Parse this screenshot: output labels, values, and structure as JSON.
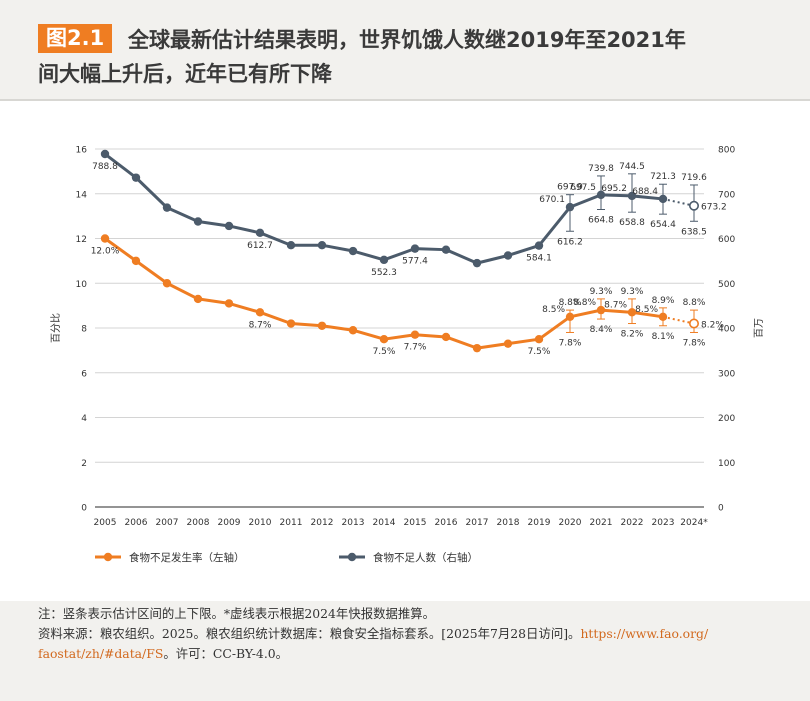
{
  "header": {
    "badge": "图2.1",
    "title_line1": "全球最新估计结果表明，世界饥饿人数继2019年至2021年",
    "title_line2": "间大幅上升后，近年已有所下降"
  },
  "chart_data": {
    "type": "line",
    "categories": [
      "2005",
      "2006",
      "2007",
      "2008",
      "2009",
      "2010",
      "2011",
      "2012",
      "2013",
      "2014",
      "2015",
      "2016",
      "2017",
      "2018",
      "2019",
      "2020",
      "2021",
      "2022",
      "2023",
      "2024*"
    ],
    "left_axis": {
      "label": "百分比",
      "ylim": [
        0,
        16
      ],
      "ticks": [
        0,
        2,
        4,
        6,
        8,
        10,
        12,
        14,
        16
      ]
    },
    "right_axis": {
      "label": "百万",
      "ylim": [
        0,
        800
      ],
      "ticks": [
        0,
        100,
        200,
        300,
        400,
        500,
        600,
        700,
        800
      ]
    },
    "grid": "horizontal",
    "legend_position": "bottom-left",
    "series": [
      {
        "name": "食物不足发生率（左轴）",
        "axis": "left",
        "color": "#ef7d22",
        "values": [
          12.0,
          11.0,
          10.0,
          9.3,
          9.1,
          8.7,
          8.2,
          8.1,
          7.9,
          7.5,
          7.7,
          7.6,
          7.1,
          7.3,
          7.5,
          8.5,
          8.8,
          8.7,
          8.5,
          8.2
        ],
        "upper": [
          null,
          null,
          null,
          null,
          null,
          null,
          null,
          null,
          null,
          null,
          null,
          null,
          null,
          null,
          null,
          8.8,
          9.3,
          9.3,
          8.9,
          8.8
        ],
        "lower": [
          null,
          null,
          null,
          null,
          null,
          null,
          null,
          null,
          null,
          null,
          null,
          null,
          null,
          null,
          null,
          7.8,
          8.4,
          8.2,
          8.1,
          7.8
        ],
        "labels": [
          {
            "i": 0,
            "text": "12.0%",
            "pos": "below"
          },
          {
            "i": 5,
            "text": "8.7%",
            "pos": "below"
          },
          {
            "i": 9,
            "text": "7.5%",
            "pos": "below"
          },
          {
            "i": 10,
            "text": "7.7%",
            "pos": "below"
          },
          {
            "i": 14,
            "text": "7.5%",
            "pos": "below"
          },
          {
            "i": 15,
            "text": "8.8%",
            "pos": "upper"
          },
          {
            "i": 15,
            "text": "8.5%",
            "pos": "left"
          },
          {
            "i": 15,
            "text": "7.8%",
            "pos": "lower"
          },
          {
            "i": 16,
            "text": "9.3%",
            "pos": "upper"
          },
          {
            "i": 16,
            "text": "8.8%",
            "pos": "left"
          },
          {
            "i": 16,
            "text": "8.4%",
            "pos": "lower"
          },
          {
            "i": 17,
            "text": "9.3%",
            "pos": "upper"
          },
          {
            "i": 17,
            "text": "8.7%",
            "pos": "left"
          },
          {
            "i": 17,
            "text": "8.2%",
            "pos": "lower"
          },
          {
            "i": 18,
            "text": "8.9%",
            "pos": "upper"
          },
          {
            "i": 18,
            "text": "8.5%",
            "pos": "left"
          },
          {
            "i": 18,
            "text": "8.1%",
            "pos": "lower"
          },
          {
            "i": 19,
            "text": "8.8%",
            "pos": "upper"
          },
          {
            "i": 19,
            "text": "8.2%",
            "pos": "right"
          },
          {
            "i": 19,
            "text": "7.8%",
            "pos": "lower"
          }
        ]
      },
      {
        "name": "食物不足人数（右轴）",
        "axis": "right",
        "color": "#4c5b6b",
        "values": [
          788.8,
          736.0,
          669.0,
          638.0,
          628.0,
          612.7,
          585.0,
          585.0,
          572.0,
          552.3,
          577.4,
          575.0,
          545.0,
          562.0,
          584.1,
          670.1,
          697.5,
          695.2,
          688.4,
          673.2
        ],
        "upper": [
          null,
          null,
          null,
          null,
          null,
          null,
          null,
          null,
          null,
          null,
          null,
          null,
          null,
          null,
          null,
          697.9,
          739.8,
          744.5,
          721.3,
          719.6
        ],
        "lower": [
          null,
          null,
          null,
          null,
          null,
          null,
          null,
          null,
          null,
          null,
          null,
          null,
          null,
          null,
          null,
          616.2,
          664.8,
          658.8,
          654.4,
          638.5
        ],
        "labels": [
          {
            "i": 0,
            "text": "788.8",
            "pos": "below"
          },
          {
            "i": 5,
            "text": "612.7",
            "pos": "below"
          },
          {
            "i": 9,
            "text": "552.3",
            "pos": "below"
          },
          {
            "i": 10,
            "text": "577.4",
            "pos": "below"
          },
          {
            "i": 14,
            "text": "584.1",
            "pos": "below"
          },
          {
            "i": 15,
            "text": "697.9",
            "pos": "upper"
          },
          {
            "i": 15,
            "text": "670.1",
            "pos": "left"
          },
          {
            "i": 15,
            "text": "616.2",
            "pos": "lower"
          },
          {
            "i": 16,
            "text": "739.8",
            "pos": "upper"
          },
          {
            "i": 16,
            "text": "697.5",
            "pos": "left"
          },
          {
            "i": 16,
            "text": "664.8",
            "pos": "lower"
          },
          {
            "i": 17,
            "text": "744.5",
            "pos": "upper"
          },
          {
            "i": 17,
            "text": "695.2",
            "pos": "left"
          },
          {
            "i": 17,
            "text": "658.8",
            "pos": "lower"
          },
          {
            "i": 18,
            "text": "721.3",
            "pos": "upper"
          },
          {
            "i": 18,
            "text": "688.4",
            "pos": "left"
          },
          {
            "i": 18,
            "text": "654.4",
            "pos": "lower"
          },
          {
            "i": 19,
            "text": "719.6",
            "pos": "upper"
          },
          {
            "i": 19,
            "text": "673.2",
            "pos": "right"
          },
          {
            "i": 19,
            "text": "638.5",
            "pos": "lower"
          }
        ]
      }
    ]
  },
  "notes": {
    "note": "注：竖条表示估计区间的上下限。*虚线表示根据2024年快报数据推算。",
    "source_line1": "资料来源：粮农组织。2025。粮农组织统计数据库：粮食安全指标套系。[2025年7月28日访问]。",
    "source_url1": "https://www.fao.org/",
    "source_url2": "faostat/zh/#data/FS",
    "license": "。许可：CC-BY-4.0。"
  }
}
